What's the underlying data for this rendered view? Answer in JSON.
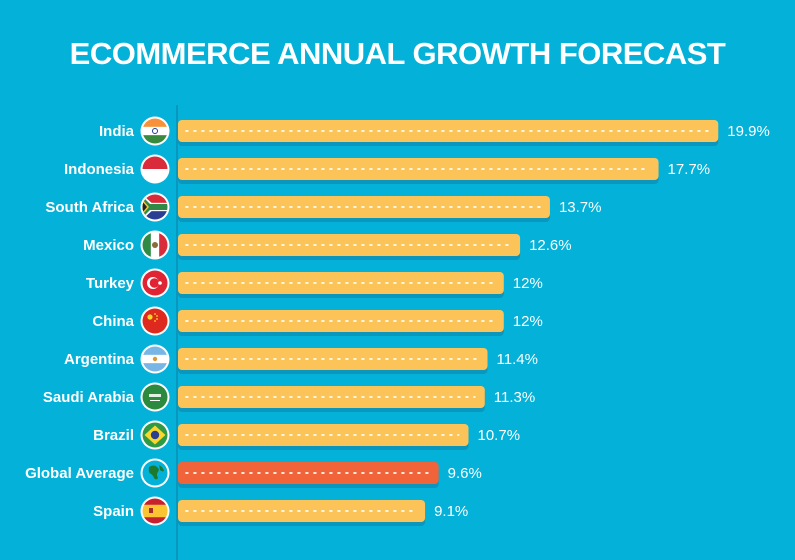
{
  "chart_data": {
    "type": "bar",
    "orientation": "horizontal",
    "title": "ECOMMERCE ANNUAL GROWTH FORECAST",
    "xlabel": "",
    "ylabel": "",
    "xlim": [
      0,
      20
    ],
    "grid": false,
    "unit": "%",
    "categories": [
      "India",
      "Indonesia",
      "South Africa",
      "Mexico",
      "Turkey",
      "China",
      "Argentina",
      "Saudi Arabia",
      "Brazil",
      "Global Average",
      "Spain"
    ],
    "values": [
      19.9,
      17.7,
      13.7,
      12.6,
      12,
      12,
      11.4,
      11.3,
      10.7,
      9.6,
      9.1
    ],
    "value_labels": [
      "19.9%",
      "17.7%",
      "13.7%",
      "12.6%",
      "12%",
      "12%",
      "11.4%",
      "11.3%",
      "10.7%",
      "9.6%",
      "9.1%"
    ],
    "icons": [
      "india-flag-icon",
      "indonesia-flag-icon",
      "south-africa-flag-icon",
      "mexico-flag-icon",
      "turkey-flag-icon",
      "china-flag-icon",
      "argentina-flag-icon",
      "saudi-arabia-flag-icon",
      "brazil-flag-icon",
      "globe-icon",
      "spain-flag-icon"
    ],
    "highlight_category": "Global Average",
    "colors": {
      "background": "#04b1d8",
      "bar": "#fcc458",
      "highlight_bar": "#f1643a",
      "shadow": "#0a96bd",
      "text": "#ffffff"
    }
  }
}
